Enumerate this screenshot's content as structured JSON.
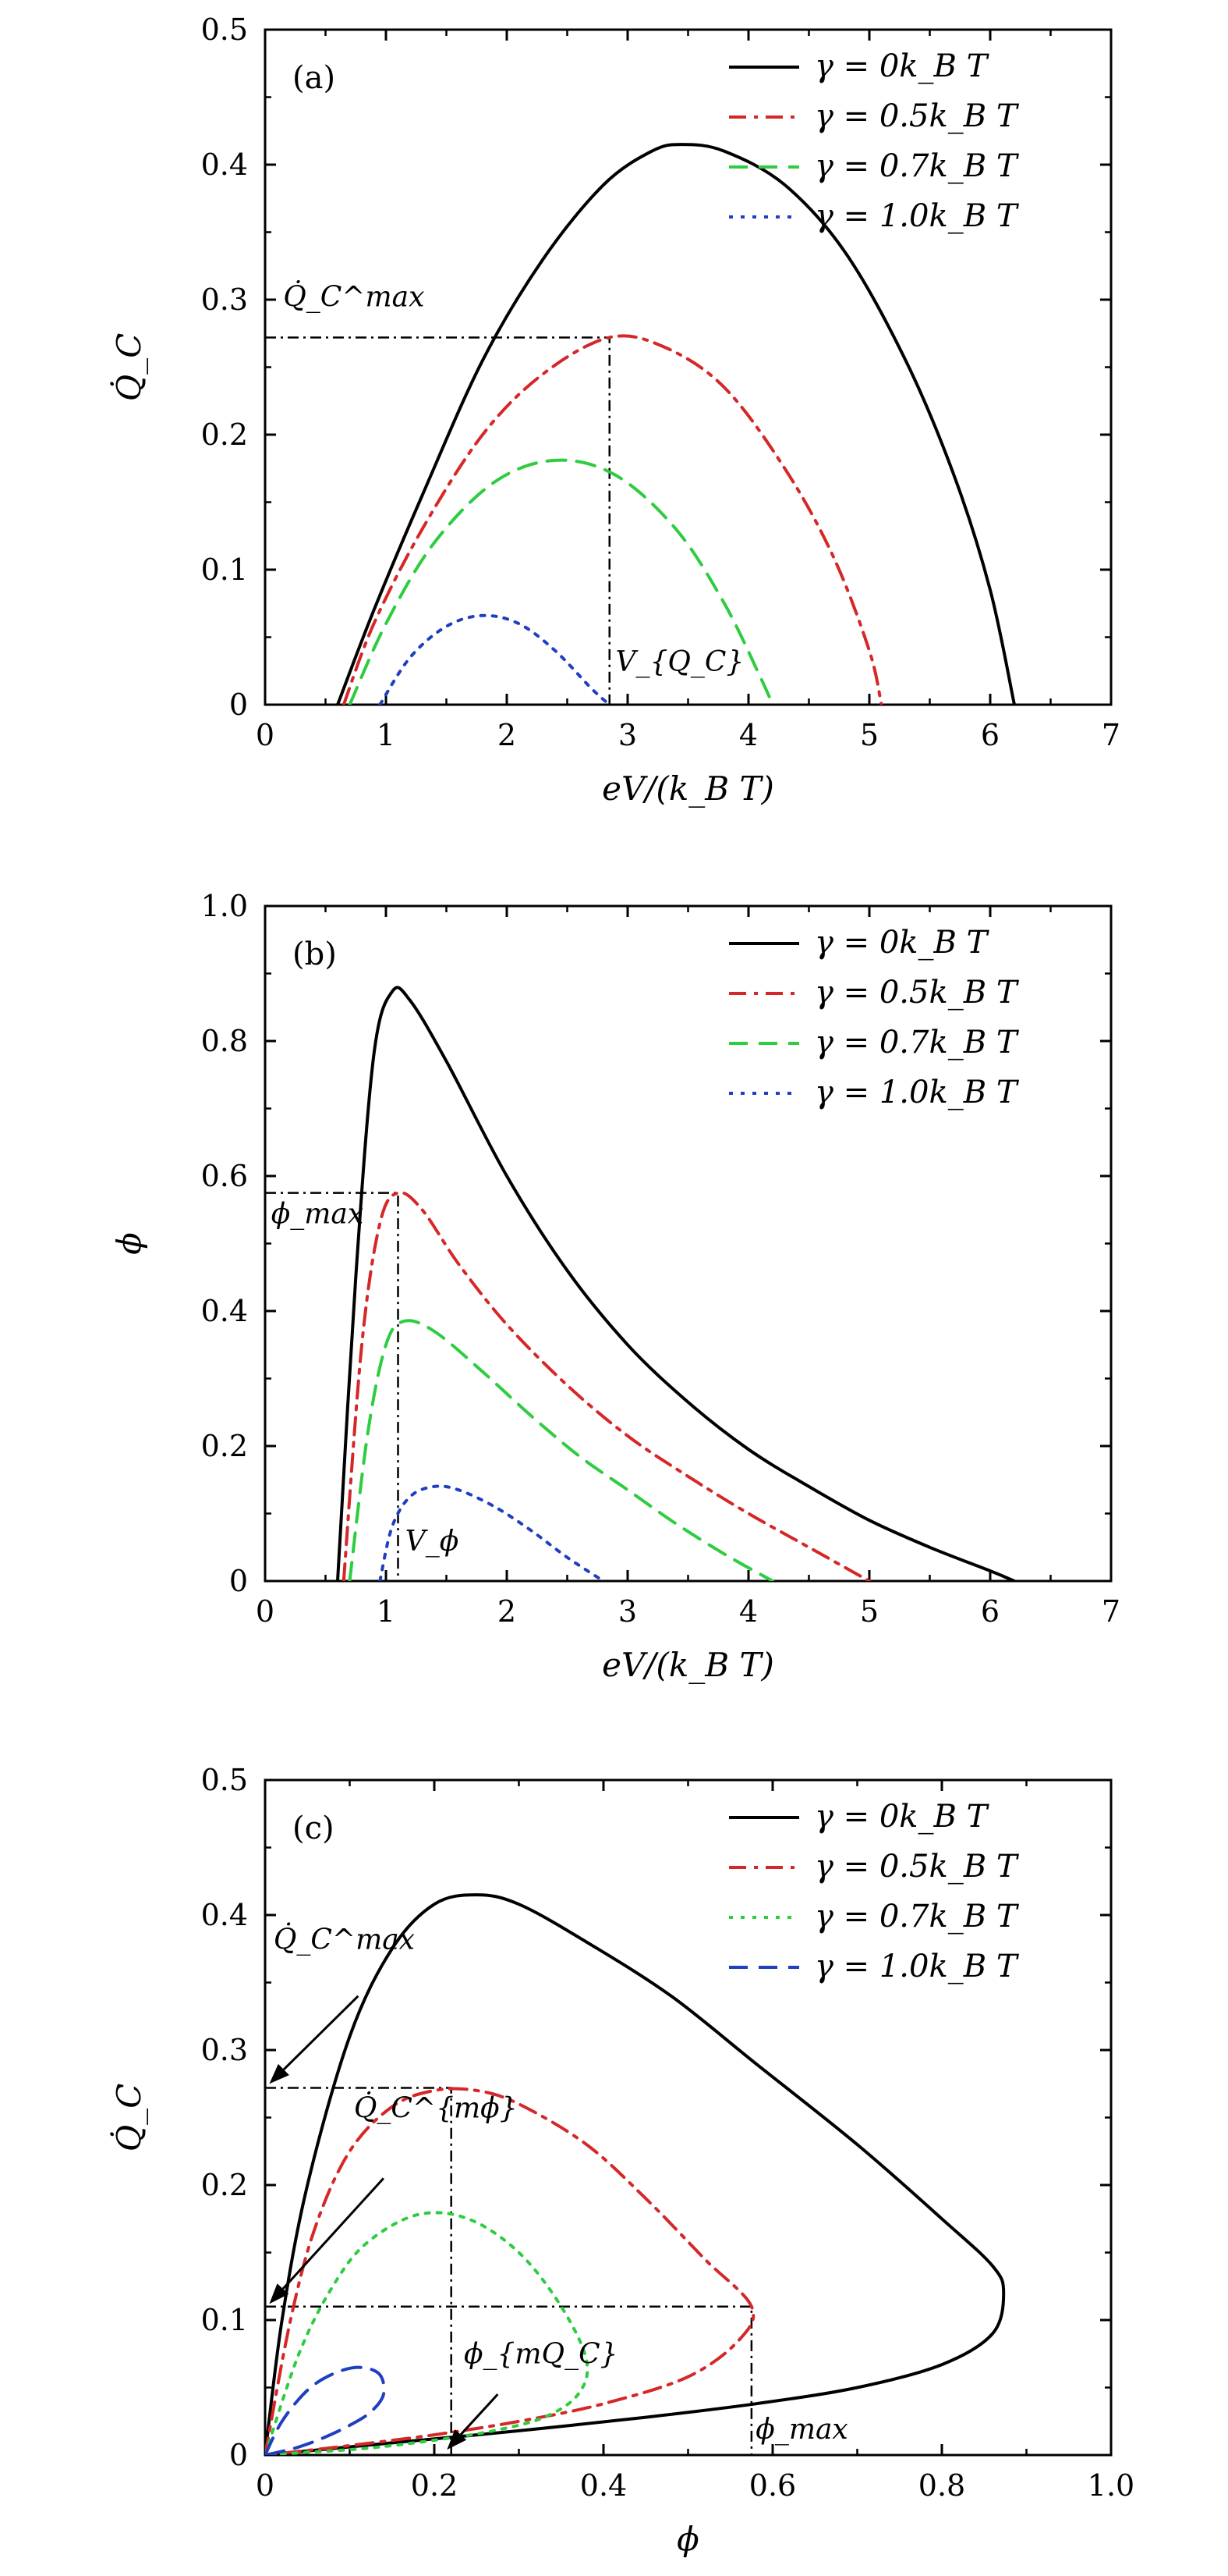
{
  "chart_data": [
    {
      "panel": "(a)",
      "type": "line",
      "xlabel": "eV/(k_B T)",
      "ylabel": "Q̇_C",
      "xlim": [
        0,
        7
      ],
      "ylim": [
        0,
        0.5
      ],
      "x_ticks": [
        "0",
        "1",
        "2",
        "3",
        "4",
        "5",
        "6",
        "7"
      ],
      "y_ticks": [
        "0",
        "0.1",
        "0.2",
        "0.3",
        "0.4",
        "0.5"
      ],
      "legend_position": "top-right",
      "series": [
        {
          "name": "γ = 0k_B T",
          "color": "#000000",
          "dash": "solid",
          "x": [
            0.6,
            0.9,
            1.3,
            1.8,
            2.3,
            2.8,
            3.2,
            3.45,
            3.8,
            4.3,
            4.8,
            5.3,
            5.7,
            6.0,
            6.2
          ],
          "y": [
            0,
            0.07,
            0.155,
            0.255,
            0.33,
            0.385,
            0.41,
            0.415,
            0.41,
            0.385,
            0.335,
            0.255,
            0.17,
            0.085,
            0
          ]
        },
        {
          "name": "γ = 0.5k_B T",
          "color": "#d62728",
          "dash": "dashdot",
          "x": [
            0.65,
            0.9,
            1.3,
            1.8,
            2.3,
            2.85,
            3.3,
            3.8,
            4.3,
            4.7,
            5.0,
            5.1
          ],
          "y": [
            0,
            0.06,
            0.13,
            0.2,
            0.245,
            0.272,
            0.265,
            0.235,
            0.175,
            0.11,
            0.04,
            0
          ]
        },
        {
          "name": "γ = 0.7k_B T",
          "color": "#2ecc40",
          "dash": "dashed",
          "x": [
            0.7,
            1.0,
            1.4,
            1.9,
            2.4,
            2.9,
            3.4,
            3.8,
            4.1,
            4.2
          ],
          "y": [
            0,
            0.06,
            0.12,
            0.165,
            0.181,
            0.17,
            0.13,
            0.075,
            0.02,
            0
          ]
        },
        {
          "name": "γ = 1.0k_B T",
          "color": "#1f3fbf",
          "dash": "dotted",
          "x": [
            0.95,
            1.2,
            1.5,
            1.8,
            2.1,
            2.4,
            2.7,
            2.85
          ],
          "y": [
            0,
            0.035,
            0.058,
            0.066,
            0.06,
            0.04,
            0.012,
            0
          ]
        }
      ],
      "guides": {
        "x": 2.85,
        "y": 0.272
      },
      "annotations": [
        {
          "text": "Q̇_C^max",
          "x": 0.15,
          "y": 0.295
        },
        {
          "text": "V_{Q_C}",
          "x": 2.9,
          "y": 0.025
        }
      ]
    },
    {
      "panel": "(b)",
      "type": "line",
      "xlabel": "eV/(k_B T)",
      "ylabel": "ϕ",
      "xlim": [
        0,
        7
      ],
      "ylim": [
        0,
        1.0
      ],
      "x_ticks": [
        "0",
        "1",
        "2",
        "3",
        "4",
        "5",
        "6",
        "7"
      ],
      "y_ticks": [
        "0",
        "0.2",
        "0.4",
        "0.6",
        "0.8",
        "1.0"
      ],
      "legend_position": "top-right",
      "series": [
        {
          "name": "γ = 0k_B T",
          "color": "#000000",
          "dash": "solid",
          "x": [
            0.6,
            0.75,
            0.9,
            1.05,
            1.2,
            1.5,
            2.0,
            2.5,
            3.0,
            3.5,
            4.0,
            4.5,
            5.0,
            5.5,
            6.0,
            6.2
          ],
          "y": [
            0,
            0.45,
            0.78,
            0.873,
            0.86,
            0.77,
            0.6,
            0.46,
            0.35,
            0.265,
            0.195,
            0.14,
            0.09,
            0.05,
            0.015,
            0
          ]
        },
        {
          "name": "γ = 0.5k_B T",
          "color": "#d62728",
          "dash": "dashdot",
          "x": [
            0.65,
            0.8,
            0.95,
            1.1,
            1.3,
            1.6,
            2.0,
            2.5,
            3.0,
            3.5,
            4.0,
            4.5,
            5.0
          ],
          "y": [
            0,
            0.35,
            0.53,
            0.575,
            0.55,
            0.47,
            0.38,
            0.29,
            0.215,
            0.155,
            0.1,
            0.05,
            0
          ]
        },
        {
          "name": "γ = 0.7k_B T",
          "color": "#2ecc40",
          "dash": "dashed",
          "x": [
            0.7,
            0.85,
            1.0,
            1.15,
            1.4,
            1.8,
            2.2,
            2.6,
            3.0,
            3.4,
            3.8,
            4.2
          ],
          "y": [
            0,
            0.22,
            0.35,
            0.385,
            0.37,
            0.31,
            0.245,
            0.185,
            0.135,
            0.085,
            0.04,
            0
          ]
        },
        {
          "name": "γ = 1.0k_B T",
          "color": "#1f3fbf",
          "dash": "dotted",
          "x": [
            0.95,
            1.05,
            1.2,
            1.4,
            1.6,
            1.9,
            2.2,
            2.5,
            2.8
          ],
          "y": [
            0,
            0.08,
            0.125,
            0.14,
            0.135,
            0.11,
            0.075,
            0.035,
            0
          ]
        }
      ],
      "guides": {
        "x": 1.1,
        "y": 0.575
      },
      "annotations": [
        {
          "text": "ϕ_max",
          "x": 0.05,
          "y": 0.53
        },
        {
          "text": "V_ϕ",
          "x": 1.16,
          "y": 0.045
        }
      ]
    },
    {
      "panel": "(c)",
      "type": "line",
      "xlabel": "ϕ",
      "ylabel": "Q̇_C",
      "xlim": [
        0,
        1.0
      ],
      "ylim": [
        0,
        0.5
      ],
      "x_ticks": [
        "0",
        "0.2",
        "0.4",
        "0.6",
        "0.8",
        "1.0"
      ],
      "y_ticks": [
        "0",
        "0.1",
        "0.2",
        "0.3",
        "0.4",
        "0.5"
      ],
      "legend_position": "top-right",
      "series": [
        {
          "name": "γ = 0k_B T",
          "color": "#000000",
          "dash": "solid",
          "x": [
            0,
            0.02,
            0.05,
            0.1,
            0.15,
            0.2,
            0.25,
            0.3,
            0.38,
            0.48,
            0.58,
            0.7,
            0.8,
            0.86,
            0.873,
            0.86,
            0.8,
            0.7,
            0.58,
            0.45,
            0.3,
            0.15,
            0.05,
            0
          ],
          "y": [
            0,
            0.1,
            0.2,
            0.31,
            0.375,
            0.408,
            0.415,
            0.408,
            0.38,
            0.34,
            0.29,
            0.23,
            0.175,
            0.14,
            0.12,
            0.09,
            0.067,
            0.05,
            0.038,
            0.028,
            0.018,
            0.009,
            0.003,
            0
          ]
        },
        {
          "name": "γ = 0.5k_B T",
          "color": "#d62728",
          "dash": "dashdot",
          "x": [
            0,
            0.03,
            0.06,
            0.1,
            0.15,
            0.2,
            0.25,
            0.3,
            0.38,
            0.45,
            0.52,
            0.575,
            0.56,
            0.5,
            0.4,
            0.3,
            0.2,
            0.1,
            0.03,
            0
          ],
          "y": [
            0,
            0.1,
            0.17,
            0.225,
            0.258,
            0.27,
            0.27,
            0.26,
            0.23,
            0.19,
            0.145,
            0.11,
            0.085,
            0.058,
            0.038,
            0.025,
            0.015,
            0.007,
            0.002,
            0
          ]
        },
        {
          "name": "γ = 0.7k_B T",
          "color": "#2ecc40",
          "dash": "dotted",
          "x": [
            0,
            0.04,
            0.08,
            0.12,
            0.18,
            0.24,
            0.3,
            0.35,
            0.38,
            0.37,
            0.33,
            0.27,
            0.2,
            0.12,
            0.05,
            0
          ],
          "y": [
            0,
            0.075,
            0.125,
            0.157,
            0.178,
            0.175,
            0.15,
            0.11,
            0.07,
            0.045,
            0.028,
            0.018,
            0.011,
            0.005,
            0.002,
            0
          ]
        },
        {
          "name": "γ = 1.0k_B T",
          "color": "#1f3fbf",
          "dash": "dashed",
          "x": [
            0,
            0.02,
            0.05,
            0.08,
            0.11,
            0.135,
            0.14,
            0.125,
            0.1,
            0.07,
            0.04,
            0.015,
            0
          ],
          "y": [
            0,
            0.025,
            0.048,
            0.06,
            0.065,
            0.06,
            0.045,
            0.032,
            0.022,
            0.013,
            0.006,
            0.002,
            0
          ]
        }
      ],
      "guides": {
        "x1": 0.22,
        "y1": 0.272,
        "x2": 0.575,
        "y2": 0.11
      },
      "annotations": [
        {
          "text": "Q̇_C^max",
          "x": 0.01,
          "y": 0.375
        },
        {
          "text": "Q̇_C^{mϕ}",
          "x": 0.105,
          "y": 0.25
        },
        {
          "text": "ϕ_{mQ_C}",
          "x": 0.235,
          "y": 0.068
        },
        {
          "text": "ϕ_max",
          "x": 0.58,
          "y": 0.012
        }
      ]
    }
  ]
}
